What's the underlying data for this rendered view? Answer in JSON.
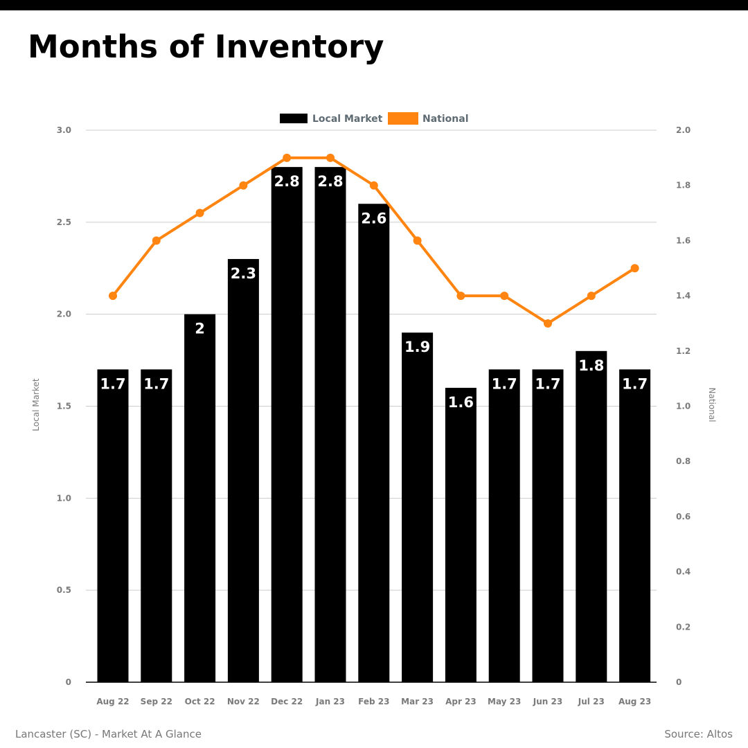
{
  "header": {
    "title": "Months of Inventory"
  },
  "footer": {
    "left_text": "Lancaster (SC) - Market At A Glance",
    "right_text": "Source: Altos"
  },
  "colors": {
    "bar": "#000000",
    "line": "#ff8410",
    "grid": "#cccccc",
    "tick": "#7a7a7a",
    "legend_text": "#5f6b73",
    "bar_label": "#ffffff"
  },
  "chart_data": {
    "type": "bar",
    "categories": [
      "Aug 22",
      "Sep 22",
      "Oct 22",
      "Nov 22",
      "Dec 22",
      "Jan 23",
      "Feb 23",
      "Mar 23",
      "Apr 23",
      "May 23",
      "Jun 23",
      "Jul 23",
      "Aug 23"
    ],
    "series": [
      {
        "name": "Local Market",
        "type": "bar",
        "axis": "left",
        "values": [
          1.7,
          1.7,
          2,
          2.3,
          2.8,
          2.8,
          2.6,
          1.9,
          1.6,
          1.7,
          1.7,
          1.8,
          1.7
        ],
        "value_labels": [
          "1.7",
          "1.7",
          "2",
          "2.3",
          "2.8",
          "2.8",
          "2.6",
          "1.9",
          "1.6",
          "1.7",
          "1.7",
          "1.8",
          "1.7"
        ]
      },
      {
        "name": "National",
        "type": "line",
        "axis": "right",
        "values": [
          1.4,
          1.6,
          1.7,
          1.8,
          1.9,
          1.9,
          1.8,
          1.6,
          1.4,
          1.4,
          1.3,
          1.4,
          1.5
        ]
      }
    ],
    "y_left": {
      "label": "Local Market",
      "range": [
        0,
        3.0
      ],
      "ticks": [
        0,
        0.5,
        1.0,
        1.5,
        2.0,
        2.5,
        3.0
      ],
      "tick_labels": [
        "0",
        "0.5",
        "1.0",
        "1.5",
        "2.0",
        "2.5",
        "3.0"
      ]
    },
    "y_right": {
      "label": "National",
      "range": [
        0,
        2.0
      ],
      "ticks": [
        0,
        0.2,
        0.4,
        0.6,
        0.8,
        1.0,
        1.2,
        1.4,
        1.6,
        1.8,
        2.0
      ],
      "tick_labels": [
        "0",
        "0.2",
        "0.4",
        "0.6",
        "0.8",
        "1.0",
        "1.2",
        "1.4",
        "1.6",
        "1.8",
        "2.0"
      ]
    },
    "grid": true,
    "legend_position": "top-center"
  }
}
